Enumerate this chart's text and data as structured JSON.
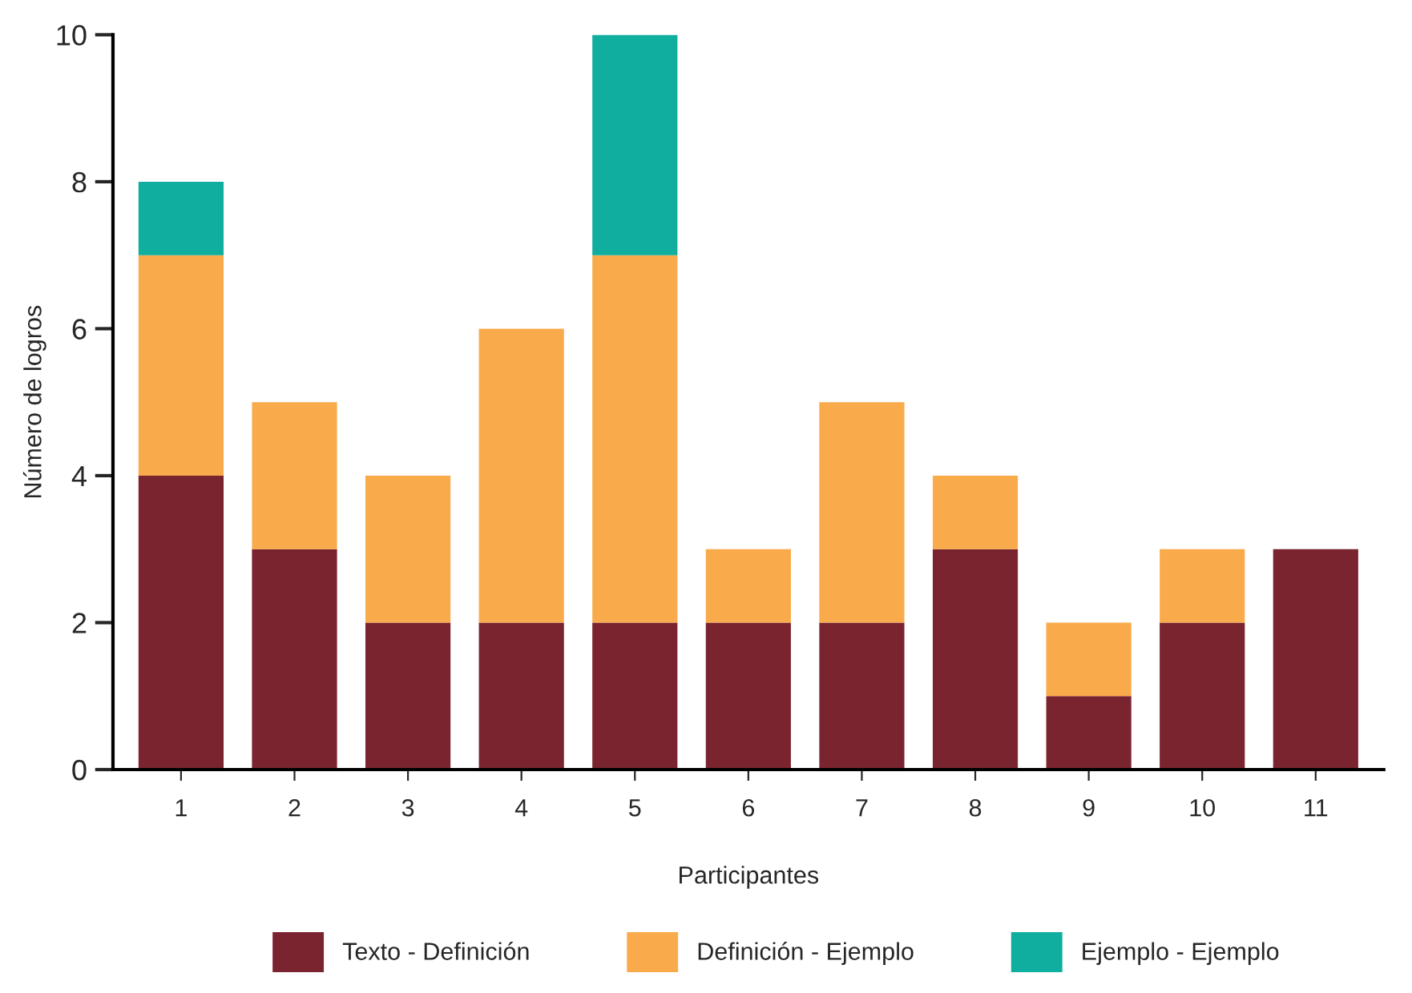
{
  "chart_data": {
    "type": "bar",
    "stacked": true,
    "xlabel": "Participantes",
    "ylabel": "Número de logros",
    "categories": [
      "1",
      "2",
      "3",
      "4",
      "5",
      "6",
      "7",
      "8",
      "9",
      "10",
      "11"
    ],
    "series": [
      {
        "name": "Texto - Definición",
        "color": "#7a2430",
        "values": [
          4,
          3,
          2,
          2,
          2,
          2,
          2,
          3,
          1,
          2,
          3
        ]
      },
      {
        "name": "Definición - Ejemplo",
        "color": "#f9ab4b",
        "values": [
          3,
          2,
          2,
          4,
          5,
          1,
          3,
          1,
          1,
          1,
          0
        ]
      },
      {
        "name": "Ejemplo - Ejemplo",
        "color": "#0fae9e",
        "values": [
          1,
          0,
          0,
          0,
          3,
          0,
          0,
          0,
          0,
          0,
          0
        ]
      }
    ],
    "ylim": [
      0,
      10
    ],
    "yticks": [
      0,
      2,
      4,
      6,
      8,
      10
    ],
    "grid": false,
    "legend": "bottom"
  }
}
